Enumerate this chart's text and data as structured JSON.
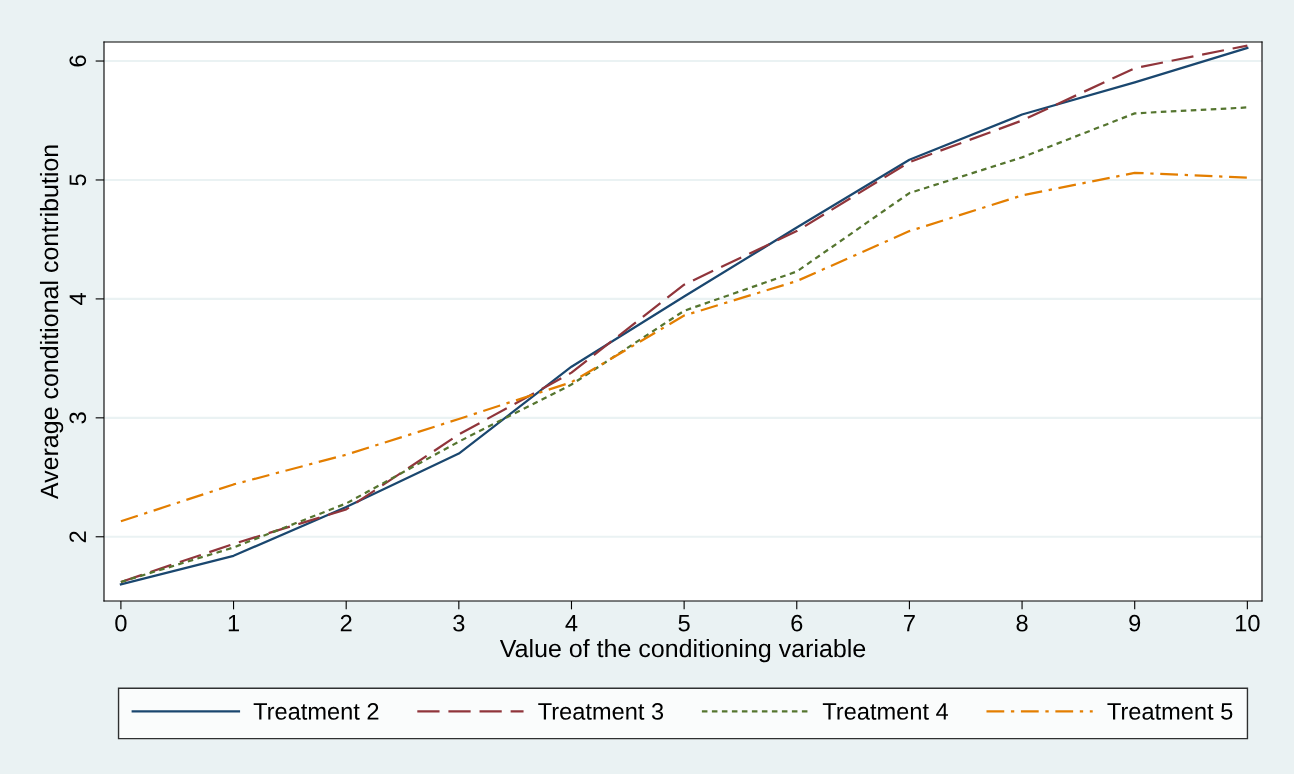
{
  "chart_data": {
    "type": "line",
    "xlabel": "Value of the conditioning variable",
    "ylabel": "Average conditional contribution",
    "x": [
      0,
      1,
      2,
      3,
      4,
      5,
      6,
      7,
      8,
      9,
      10
    ],
    "xlim": [
      -0.15,
      10.13
    ],
    "xticks": [
      0,
      1,
      2,
      3,
      4,
      5,
      6,
      7,
      8,
      9,
      10
    ],
    "ylim": [
      1.46,
      6.16
    ],
    "yticks": [
      2,
      3,
      4,
      5,
      6
    ],
    "grid": "y",
    "legend": "bottom",
    "marker": "none",
    "series": [
      {
        "name": "Treatment 2",
        "color": "#1a476f",
        "line_style": "solid",
        "values": [
          1.6,
          1.84,
          2.25,
          2.7,
          3.43,
          4.02,
          4.6,
          5.17,
          5.55,
          5.82,
          6.11
        ]
      },
      {
        "name": "Treatment 3",
        "color": "#90353b",
        "line_style": "dashed",
        "values": [
          1.62,
          1.94,
          2.23,
          2.86,
          3.38,
          4.12,
          4.57,
          5.15,
          5.5,
          5.94,
          6.13
        ]
      },
      {
        "name": "Treatment 4",
        "color": "#55752f",
        "line_style": "dotted",
        "values": [
          1.62,
          1.91,
          2.28,
          2.8,
          3.28,
          3.9,
          4.23,
          4.89,
          5.19,
          5.56,
          5.61
        ]
      },
      {
        "name": "Treatment 5",
        "color": "#e37e00",
        "line_style": "dashdot",
        "values": [
          2.13,
          2.44,
          2.69,
          2.99,
          3.3,
          3.86,
          4.15,
          4.57,
          4.87,
          5.06,
          5.02
        ]
      }
    ]
  }
}
